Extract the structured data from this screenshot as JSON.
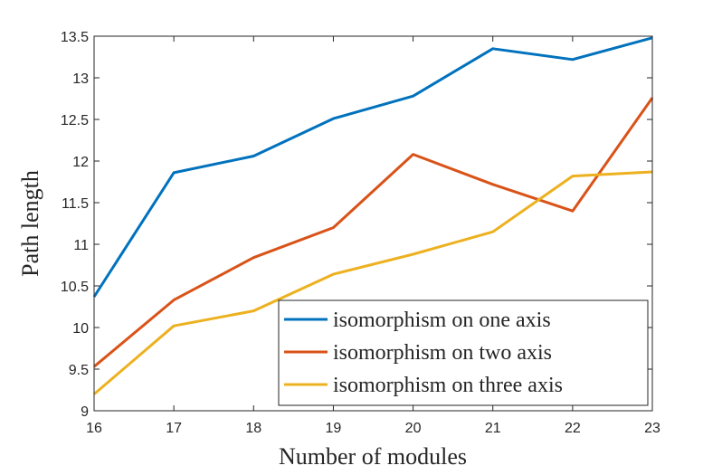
{
  "chart_data": {
    "type": "line",
    "title": "",
    "xlabel": "Number of modules",
    "ylabel": "Path length",
    "x": [
      16,
      17,
      18,
      19,
      20,
      21,
      22,
      23
    ],
    "xlim": [
      16,
      23
    ],
    "ylim": [
      9,
      13.5
    ],
    "xticks": [
      "16",
      "17",
      "18",
      "19",
      "20",
      "21",
      "22",
      "23"
    ],
    "yticks": [
      "9",
      "9.5",
      "10",
      "10.5",
      "11",
      "11.5",
      "12",
      "12.5",
      "13",
      "13.5"
    ],
    "grid": false,
    "legend_position": "bottom-right",
    "series": [
      {
        "name": "isomorphism on one axis",
        "color": "#0072BD",
        "values": [
          10.37,
          11.86,
          12.06,
          12.51,
          12.78,
          13.35,
          13.22,
          13.48
        ]
      },
      {
        "name": "isomorphism on two axis",
        "color": "#D95319",
        "values": [
          9.53,
          10.33,
          10.84,
          11.2,
          12.08,
          11.72,
          11.4,
          12.76
        ]
      },
      {
        "name": "isomorphism on three axis",
        "color": "#EDB120",
        "values": [
          9.2,
          10.02,
          10.2,
          10.64,
          10.88,
          11.15,
          11.82,
          11.87
        ]
      }
    ]
  }
}
